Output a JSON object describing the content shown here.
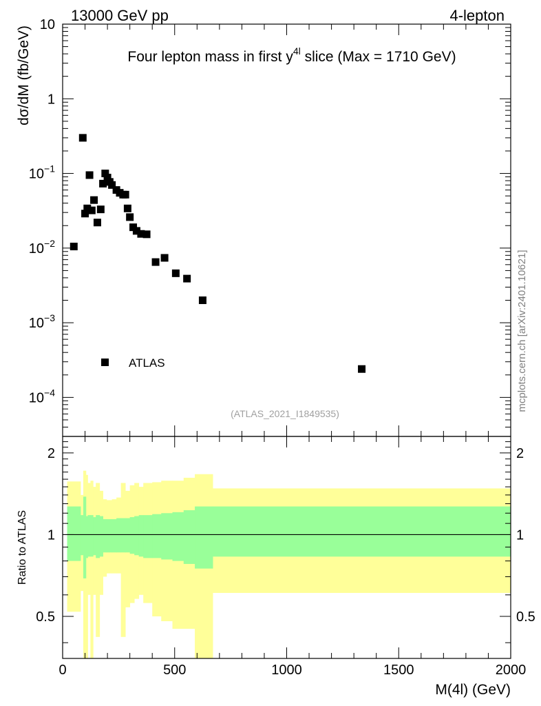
{
  "header": {
    "energy_label": "13000 GeV pp",
    "process_label": "4-lepton"
  },
  "side_label": "mcplots.cern.ch [arXiv:2401.10621]",
  "chart_data": [
    {
      "type": "scatter",
      "title": "Four lepton mass in first y^4l slice (Max = 1710 GeV)",
      "title_parts": {
        "pre": "Four lepton mass in first ",
        "var": "y",
        "sup": "4l",
        "post": " slice (Max = 1710 GeV)"
      },
      "ylabel": "dσ/dM (fb/GeV)",
      "xlabel": "M(4l) (GeV)",
      "yscale": "log",
      "ylim": [
        3e-05,
        10
      ],
      "xlim": [
        0,
        2000
      ],
      "y_ticks": [
        {
          "value": 10,
          "base": "10",
          "exp": ""
        },
        {
          "value": 1,
          "base": "1",
          "exp": ""
        },
        {
          "value": 0.1,
          "base": "10",
          "exp": "−1"
        },
        {
          "value": 0.01,
          "base": "10",
          "exp": "−2"
        },
        {
          "value": 0.001,
          "base": "10",
          "exp": "−3"
        },
        {
          "value": 0.0001,
          "base": "10",
          "exp": "−4"
        }
      ],
      "legend": {
        "label": "ATLAS",
        "position": "bottom-left"
      },
      "watermark": "(ATLAS_2021_I1849535)",
      "series": [
        {
          "name": "ATLAS",
          "x": [
            50,
            90,
            100,
            110,
            120,
            130,
            140,
            155,
            170,
            180,
            190,
            200,
            210,
            220,
            240,
            255,
            270,
            280,
            290,
            300,
            315,
            330,
            350,
            375,
            415,
            455,
            505,
            555,
            625,
            1335
          ],
          "values": [
            0.0105,
            0.3,
            0.029,
            0.034,
            0.095,
            0.032,
            0.044,
            0.022,
            0.033,
            0.073,
            0.1,
            0.088,
            0.077,
            0.07,
            0.06,
            0.055,
            0.052,
            0.052,
            0.034,
            0.026,
            0.019,
            0.017,
            0.0155,
            0.0153,
            0.0065,
            0.0074,
            0.0046,
            0.0039,
            0.002,
            0.00024
          ]
        }
      ]
    },
    {
      "type": "area",
      "ylabel": "Ratio to ATLAS",
      "xlabel": "M(4l) (GeV)",
      "ylim": [
        0.35,
        2.3
      ],
      "xlim": [
        0,
        2000
      ],
      "x_ticks": [
        "0",
        "500",
        "1000",
        "1500",
        "2000"
      ],
      "y_ticks": [
        "0.5",
        "1",
        "2"
      ],
      "reference_line": 1,
      "bands": {
        "edges": [
          20,
          80,
          92,
          104,
          112,
          124,
          136,
          148,
          165,
          180,
          196,
          208,
          220,
          240,
          260,
          280,
          300,
          320,
          340,
          360,
          400,
          440,
          490,
          540,
          590,
          670,
          2000
        ],
        "green_lo": [
          0.8,
          0.84,
          0.69,
          0.82,
          0.83,
          0.83,
          0.84,
          0.82,
          0.83,
          0.86,
          0.86,
          0.86,
          0.86,
          0.86,
          0.86,
          0.86,
          0.85,
          0.84,
          0.83,
          0.82,
          0.82,
          0.81,
          0.8,
          0.78,
          0.75,
          0.83
        ],
        "green_hi": [
          1.27,
          1.18,
          1.38,
          1.17,
          1.18,
          1.18,
          1.16,
          1.18,
          1.17,
          1.14,
          1.14,
          1.14,
          1.14,
          1.15,
          1.15,
          1.15,
          1.16,
          1.17,
          1.18,
          1.18,
          1.19,
          1.2,
          1.21,
          1.23,
          1.27,
          1.27
        ],
        "yellow_lo": [
          0.52,
          0.62,
          0.35,
          0.35,
          0.6,
          0.35,
          0.6,
          0.42,
          0.6,
          0.7,
          0.72,
          0.72,
          0.72,
          0.72,
          0.42,
          0.54,
          0.56,
          0.58,
          0.6,
          0.56,
          0.5,
          0.48,
          0.45,
          0.45,
          0.35,
          0.61
        ],
        "yellow_hi": [
          1.57,
          1.4,
          1.72,
          1.66,
          1.55,
          1.58,
          1.5,
          1.55,
          1.45,
          1.35,
          1.34,
          1.34,
          1.35,
          1.37,
          1.55,
          1.45,
          1.52,
          1.55,
          1.5,
          1.55,
          1.56,
          1.58,
          1.58,
          1.62,
          1.67,
          1.48
        ]
      }
    }
  ]
}
